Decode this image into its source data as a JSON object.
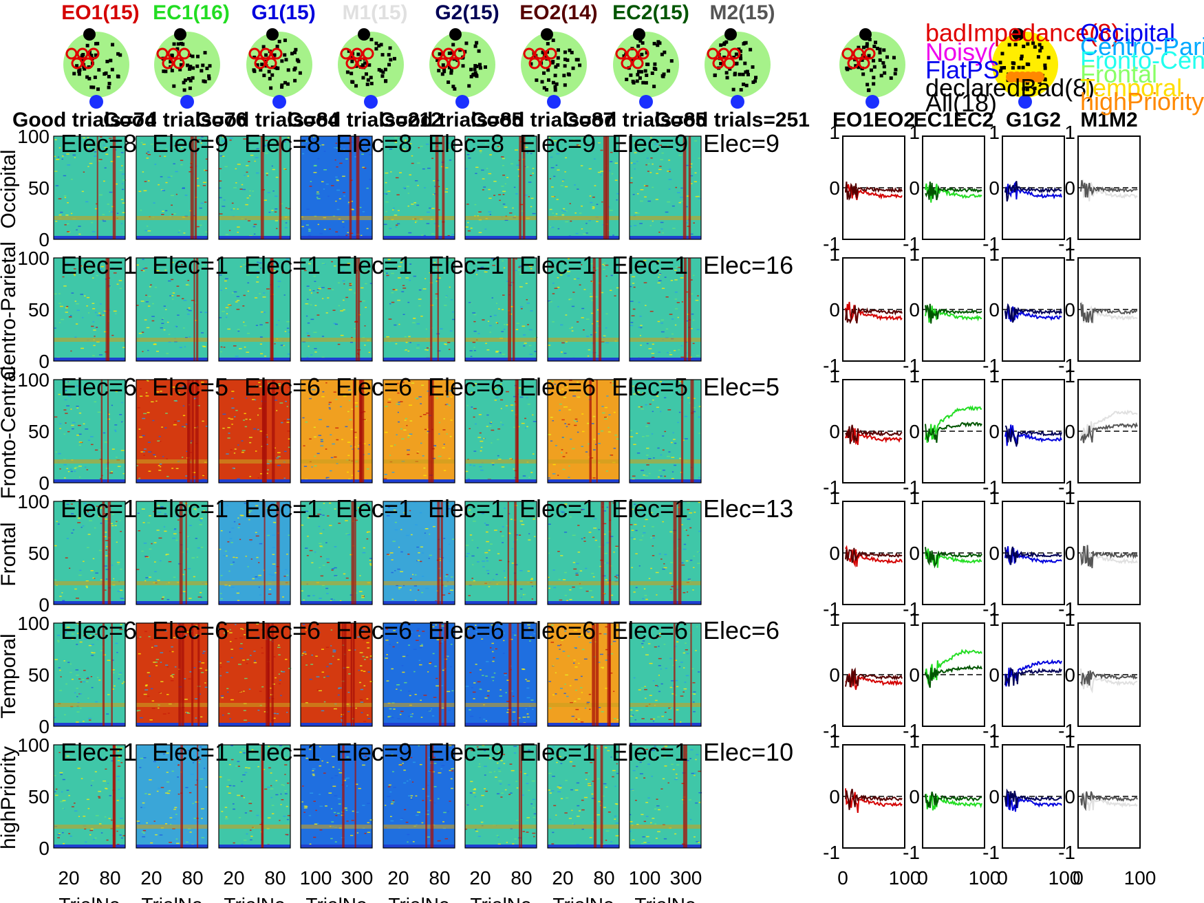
{
  "conditions": [
    {
      "label": "EO1(15)",
      "color": "#d40000"
    },
    {
      "label": "EC1(16)",
      "color": "#22dd22"
    },
    {
      "label": "G1(15)",
      "color": "#0000dd"
    },
    {
      "label": "M1(15)",
      "color": "#e0e0e0"
    },
    {
      "label": "G2(15)",
      "color": "#000055"
    },
    {
      "label": "EO2(14)",
      "color": "#550000"
    },
    {
      "label": "EC2(15)",
      "color": "#005500"
    },
    {
      "label": "M2(15)",
      "color": "#555555"
    }
  ],
  "trial_titles": [
    "Good trials=74",
    "Good trials=76",
    "Good trials=84",
    "Good trials=212",
    "Good trials=85",
    "Good trials=87",
    "Good trials=85",
    "Good trials=251"
  ],
  "row_labels": [
    "Occipital",
    "Centro-Parietal",
    "Fronto-Central",
    "Frontal",
    "Temporal",
    "highPriority"
  ],
  "elec_labels": [
    [
      "Elec=8",
      "Elec=9",
      "Elec=8",
      "Elec=8",
      "Elec=8",
      "Elec=9",
      "Elec=9",
      "Elec=9"
    ],
    [
      "Elec=1",
      "Elec=1",
      "Elec=1",
      "Elec=1",
      "Elec=1",
      "Elec=1",
      "Elec=1",
      "Elec=16"
    ],
    [
      "Elec=6",
      "Elec=5",
      "Elec=6",
      "Elec=6",
      "Elec=6",
      "Elec=6",
      "Elec=5",
      "Elec=5"
    ],
    [
      "Elec=1",
      "Elec=1",
      "Elec=1",
      "Elec=1",
      "Elec=1",
      "Elec=1",
      "Elec=1",
      "Elec=13"
    ],
    [
      "Elec=6",
      "Elec=6",
      "Elec=6",
      "Elec=6",
      "Elec=6",
      "Elec=6",
      "Elec=6",
      "Elec=6"
    ],
    [
      "Elec=1",
      "Elec=1",
      "Elec=1",
      "Elec=9",
      "Elec=9",
      "Elec=1",
      "Elec=1",
      "Elec=10"
    ]
  ],
  "spectrogram_yticks": [
    "100",
    "50",
    "0"
  ],
  "spectrogram_xticks": [
    [
      "20",
      "80"
    ],
    [
      "20",
      "80"
    ],
    [
      "20",
      "80"
    ],
    [
      "100",
      "300"
    ],
    [
      "20",
      "80"
    ],
    [
      "20",
      "80"
    ],
    [
      "20",
      "80"
    ],
    [
      "100",
      "300"
    ]
  ],
  "spectrogram_xlabel": "TrialNo",
  "diff_titles": [
    "EO1EO2",
    "EC1EC2",
    "G1G2",
    "M1M2"
  ],
  "diff_yticks": [
    "1",
    "0",
    "-1"
  ],
  "diff_xticks": [
    "0",
    "100"
  ],
  "legend_left": [
    {
      "label": "badImpedance(8)",
      "color": "#e00000"
    },
    {
      "label": "Noisy(",
      "color": "#ee00ee"
    },
    {
      "label": "FlatPS",
      "color": "#0000ee"
    },
    {
      "label": "declaredBad(8)",
      "color": "#000000"
    },
    {
      "label": "All(18)",
      "color": "#000000"
    }
  ],
  "legend_right": [
    {
      "label": "Occipital",
      "color": "#0000ee"
    },
    {
      "label": "Centro-Parietal",
      "color": "#00aaff"
    },
    {
      "label": "Fronto-Central",
      "color": "#22ffee"
    },
    {
      "label": "Frontal",
      "color": "#88ff66"
    },
    {
      "label": "Temporal",
      "color": "#ffdd00"
    },
    {
      "label": "highPriority",
      "color": "#ff8800"
    }
  ],
  "chart_data": {
    "type": "heatmap",
    "panels": "6 electrode groups x 8 conditions of trial-wise spectrograms, plus 4 condition-difference line plots per group",
    "spectrogram_ylim": [
      0,
      100
    ],
    "diff_ylim": [
      -1,
      1
    ],
    "diff_xlim": [
      0,
      100
    ],
    "diff_series_colors": [
      [
        "#d40000",
        "#550000"
      ],
      [
        "#22dd22",
        "#005500"
      ],
      [
        "#0000dd",
        "#000055"
      ],
      [
        "#e0e0e0",
        "#555555"
      ]
    ],
    "grid": false
  }
}
